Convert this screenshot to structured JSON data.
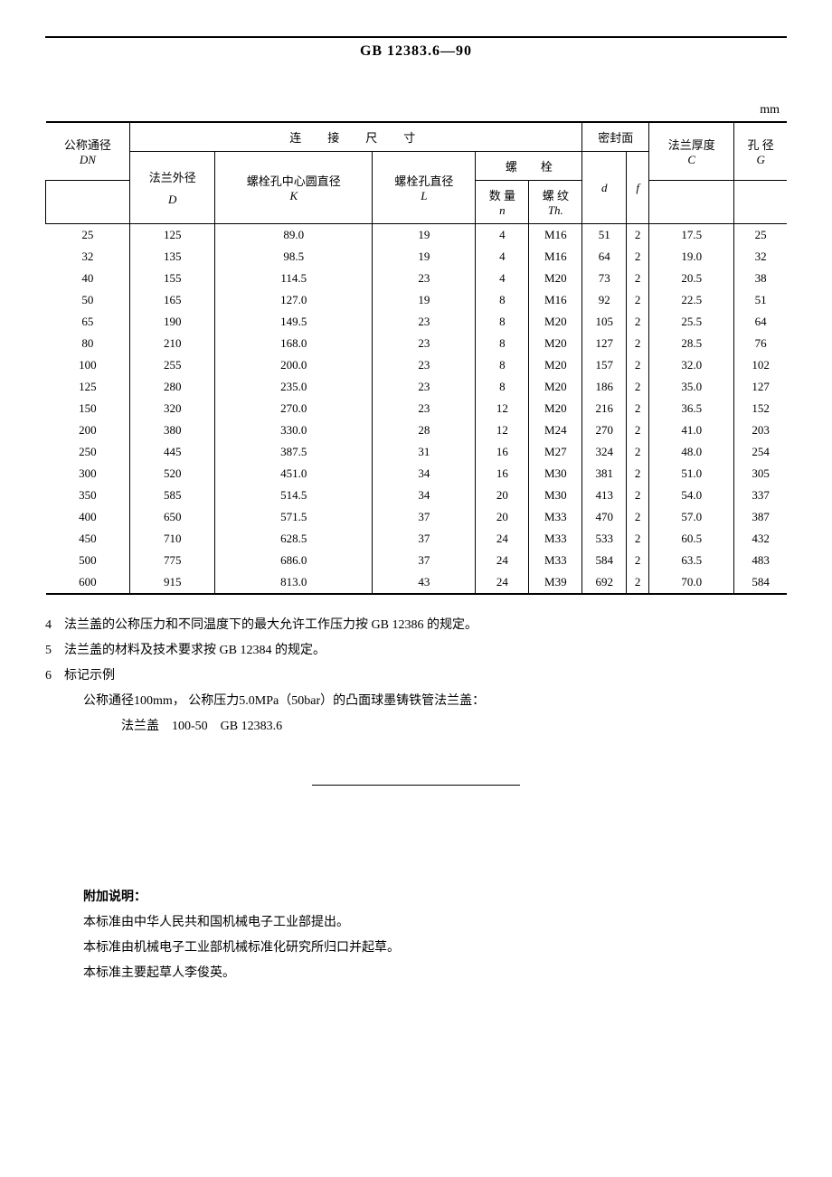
{
  "header": "GB 12383.6—90",
  "unit_label": "mm",
  "table": {
    "head": {
      "group_conn": "连　接　尺　寸",
      "group_seal": "密封面",
      "col_dn_label": "公称通径",
      "col_dn_sym": "DN",
      "col_D_label": "法兰外径",
      "col_D_sym": "D",
      "col_K_label": "螺栓孔中心圆直径",
      "col_K_sym": "K",
      "col_L_label": "螺栓孔直径",
      "col_L_sym": "L",
      "col_bolt_group": "螺　　栓",
      "col_n_label": "数 量",
      "col_n_sym": "n",
      "col_Th_label": "螺 纹",
      "col_Th_sym": "Th.",
      "col_d_sym": "d",
      "col_f_sym": "f",
      "col_C_label": "法兰厚度",
      "col_C_sym": "C",
      "col_G_label": "孔 径",
      "col_G_sym": "G"
    },
    "rows": [
      {
        "DN": "25",
        "D": "125",
        "K": "89.0",
        "L": "19",
        "n": "4",
        "Th": "M16",
        "d": "51",
        "f": "2",
        "C": "17.5",
        "G": "25"
      },
      {
        "DN": "32",
        "D": "135",
        "K": "98.5",
        "L": "19",
        "n": "4",
        "Th": "M16",
        "d": "64",
        "f": "2",
        "C": "19.0",
        "G": "32"
      },
      {
        "DN": "40",
        "D": "155",
        "K": "114.5",
        "L": "23",
        "n": "4",
        "Th": "M20",
        "d": "73",
        "f": "2",
        "C": "20.5",
        "G": "38"
      },
      {
        "DN": "50",
        "D": "165",
        "K": "127.0",
        "L": "19",
        "n": "8",
        "Th": "M16",
        "d": "92",
        "f": "2",
        "C": "22.5",
        "G": "51"
      },
      {
        "DN": "65",
        "D": "190",
        "K": "149.5",
        "L": "23",
        "n": "8",
        "Th": "M20",
        "d": "105",
        "f": "2",
        "C": "25.5",
        "G": "64"
      },
      {
        "DN": "80",
        "D": "210",
        "K": "168.0",
        "L": "23",
        "n": "8",
        "Th": "M20",
        "d": "127",
        "f": "2",
        "C": "28.5",
        "G": "76"
      },
      {
        "DN": "100",
        "D": "255",
        "K": "200.0",
        "L": "23",
        "n": "8",
        "Th": "M20",
        "d": "157",
        "f": "2",
        "C": "32.0",
        "G": "102"
      },
      {
        "DN": "125",
        "D": "280",
        "K": "235.0",
        "L": "23",
        "n": "8",
        "Th": "M20",
        "d": "186",
        "f": "2",
        "C": "35.0",
        "G": "127"
      },
      {
        "DN": "150",
        "D": "320",
        "K": "270.0",
        "L": "23",
        "n": "12",
        "Th": "M20",
        "d": "216",
        "f": "2",
        "C": "36.5",
        "G": "152"
      },
      {
        "DN": "200",
        "D": "380",
        "K": "330.0",
        "L": "28",
        "n": "12",
        "Th": "M24",
        "d": "270",
        "f": "2",
        "C": "41.0",
        "G": "203"
      },
      {
        "DN": "250",
        "D": "445",
        "K": "387.5",
        "L": "31",
        "n": "16",
        "Th": "M27",
        "d": "324",
        "f": "2",
        "C": "48.0",
        "G": "254"
      },
      {
        "DN": "300",
        "D": "520",
        "K": "451.0",
        "L": "34",
        "n": "16",
        "Th": "M30",
        "d": "381",
        "f": "2",
        "C": "51.0",
        "G": "305"
      },
      {
        "DN": "350",
        "D": "585",
        "K": "514.5",
        "L": "34",
        "n": "20",
        "Th": "M30",
        "d": "413",
        "f": "2",
        "C": "54.0",
        "G": "337"
      },
      {
        "DN": "400",
        "D": "650",
        "K": "571.5",
        "L": "37",
        "n": "20",
        "Th": "M33",
        "d": "470",
        "f": "2",
        "C": "57.0",
        "G": "387"
      },
      {
        "DN": "450",
        "D": "710",
        "K": "628.5",
        "L": "37",
        "n": "24",
        "Th": "M33",
        "d": "533",
        "f": "2",
        "C": "60.5",
        "G": "432"
      },
      {
        "DN": "500",
        "D": "775",
        "K": "686.0",
        "L": "37",
        "n": "24",
        "Th": "M33",
        "d": "584",
        "f": "2",
        "C": "63.5",
        "G": "483"
      },
      {
        "DN": "600",
        "D": "915",
        "K": "813.0",
        "L": "43",
        "n": "24",
        "Th": "M39",
        "d": "692",
        "f": "2",
        "C": "70.0",
        "G": "584"
      }
    ]
  },
  "notes": {
    "n4": "4　法兰盖的公称压力和不同温度下的最大允许工作压力按 GB 12386 的规定。",
    "n5": "5　法兰盖的材料及技术要求按 GB 12384 的规定。",
    "n6": "6　标记示例",
    "ex1": "公称通径100mm， 公称压力5.0MPa（50bar）的凸面球墨铸铁管法兰盖：",
    "ex2": "法兰盖　100-50　GB 12383.6"
  },
  "addendum": {
    "title": "附加说明：",
    "l1": "本标准由中华人民共和国机械电子工业部提出。",
    "l2": "本标准由机械电子工业部机械标准化研究所归口并起草。",
    "l3": "本标准主要起草人李俊英。"
  }
}
